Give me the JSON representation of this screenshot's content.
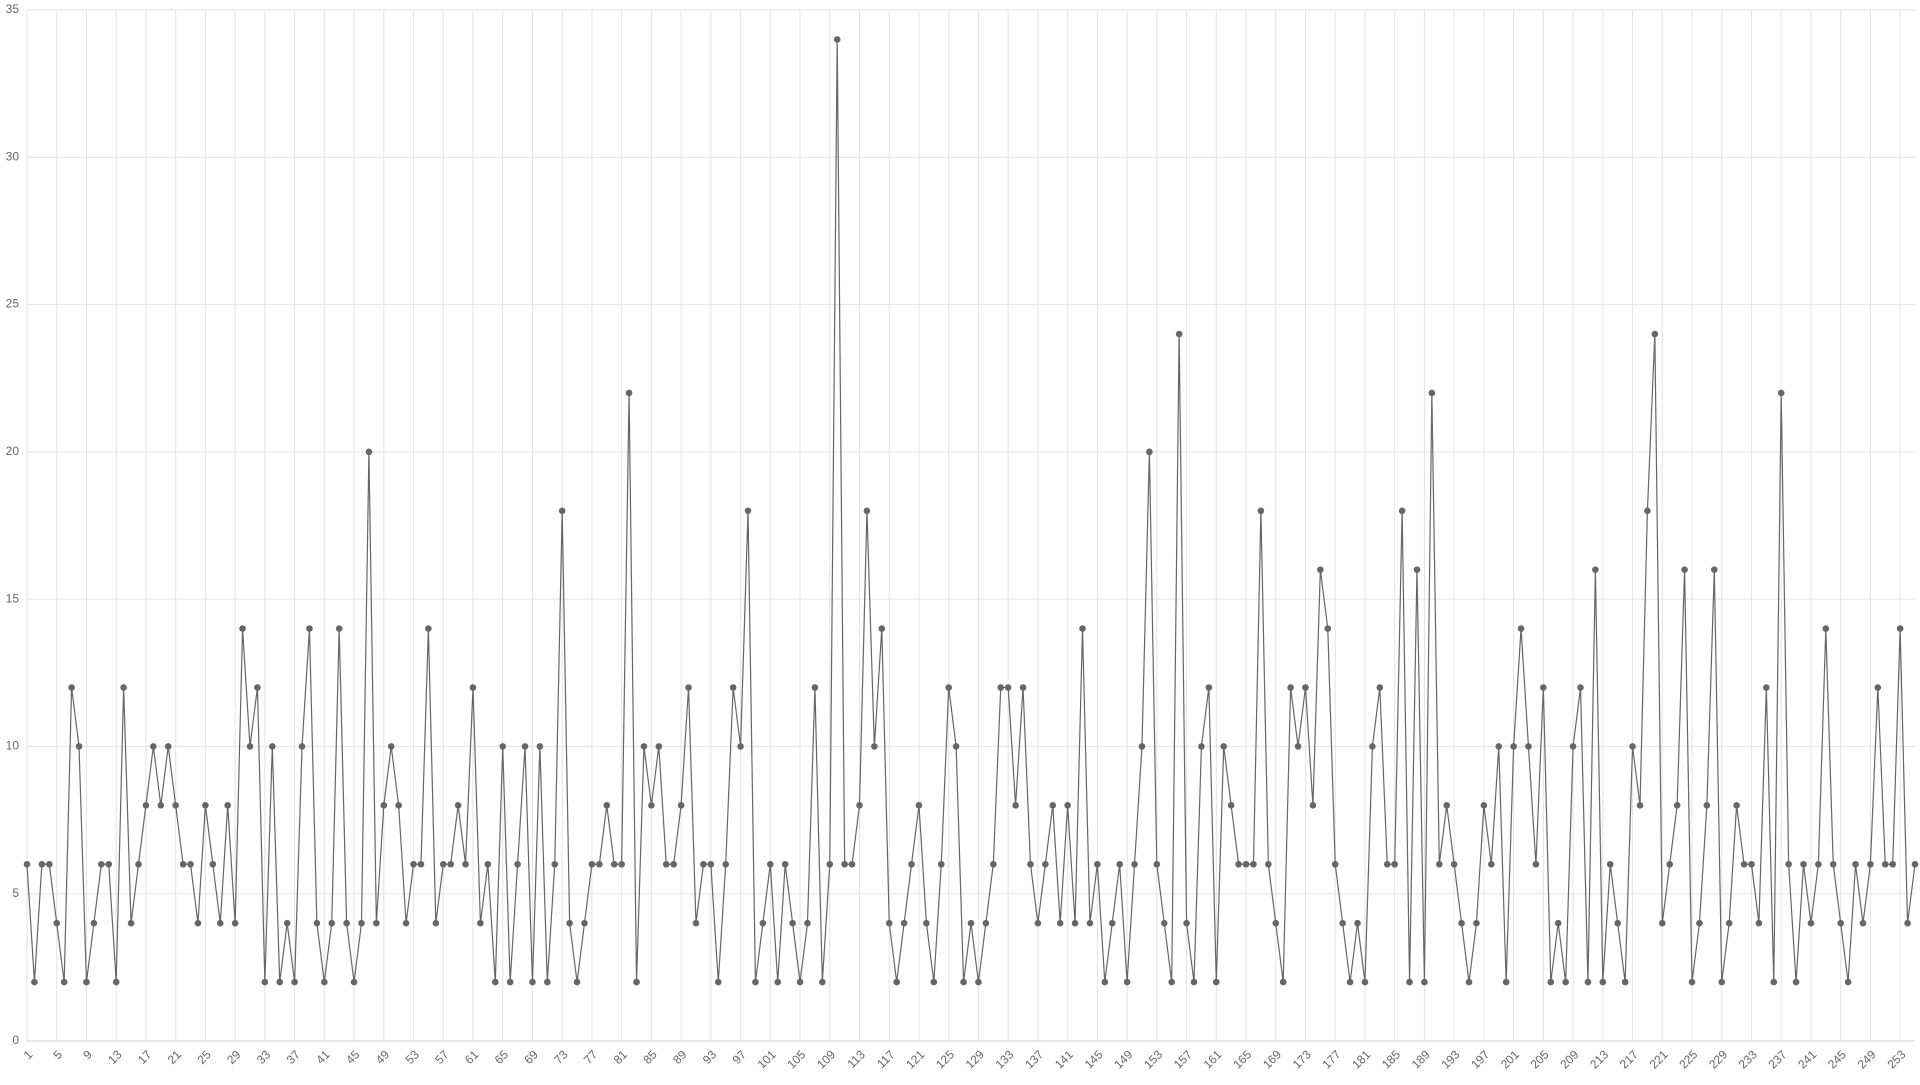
{
  "chart_data": {
    "type": "line",
    "categories": [
      1,
      null,
      null,
      null,
      5,
      null,
      null,
      null,
      9,
      null,
      null,
      null,
      13,
      null,
      null,
      null,
      17,
      null,
      null,
      null,
      21,
      null,
      null,
      null,
      25,
      null,
      null,
      null,
      29,
      null,
      null,
      null,
      33,
      null,
      null,
      null,
      37,
      null,
      null,
      null,
      41,
      null,
      null,
      null,
      45,
      null,
      null,
      null,
      49,
      null,
      null,
      null,
      53,
      null,
      null,
      null,
      57,
      null,
      null,
      null,
      61,
      null,
      null,
      null,
      65,
      null,
      null,
      null,
      69,
      null,
      null,
      null,
      73,
      null,
      null,
      null,
      77,
      null,
      null,
      null,
      81,
      null,
      null,
      null,
      85,
      null,
      null,
      null,
      89,
      null,
      null,
      null,
      93,
      null,
      null,
      null,
      97,
      null,
      null,
      null,
      101,
      null,
      null,
      null,
      105,
      null,
      null,
      null,
      109,
      null,
      null,
      null,
      113,
      null,
      null,
      null,
      117,
      null,
      null,
      null,
      121,
      null,
      null,
      null,
      125,
      null,
      null,
      null,
      129,
      null,
      null,
      null,
      133,
      null,
      null,
      null,
      137,
      null,
      null,
      null,
      141,
      null,
      null,
      null,
      145,
      null,
      null,
      null,
      149,
      null,
      null,
      null,
      153,
      null,
      null,
      null,
      157,
      null,
      null,
      null,
      161,
      null,
      null,
      null,
      165,
      null,
      null,
      null,
      169,
      null,
      null,
      null,
      173,
      null,
      null,
      null,
      177,
      null,
      null,
      null,
      181,
      null,
      null,
      null,
      185,
      null,
      null,
      null,
      189,
      null,
      null,
      null,
      193,
      null,
      null,
      null,
      197,
      null,
      null,
      null,
      201,
      null,
      null,
      null,
      205,
      null,
      null,
      null,
      209,
      null,
      null,
      null,
      213,
      null,
      null,
      null,
      217,
      null,
      null,
      null,
      221,
      null,
      null,
      null,
      225,
      null,
      null,
      null,
      229,
      null,
      null,
      null,
      233,
      null,
      null,
      null,
      237,
      null,
      null,
      null,
      241,
      null,
      null,
      null,
      245,
      null,
      null,
      null,
      249,
      null,
      null,
      null,
      253,
      null,
      null
    ],
    "values": [
      6,
      2,
      6,
      6,
      4,
      2,
      12,
      10,
      2,
      4,
      6,
      6,
      2,
      12,
      4,
      6,
      8,
      10,
      8,
      10,
      8,
      6,
      6,
      4,
      8,
      6,
      4,
      8,
      4,
      14,
      10,
      12,
      2,
      10,
      2,
      4,
      2,
      10,
      14,
      4,
      2,
      4,
      14,
      4,
      2,
      4,
      20,
      4,
      8,
      10,
      8,
      4,
      6,
      6,
      14,
      4,
      6,
      6,
      8,
      6,
      12,
      4,
      6,
      2,
      10,
      2,
      6,
      10,
      2,
      10,
      2,
      6,
      18,
      4,
      2,
      4,
      6,
      6,
      8,
      6,
      6,
      22,
      2,
      10,
      8,
      10,
      6,
      6,
      8,
      12,
      4,
      6,
      6,
      2,
      6,
      12,
      10,
      18,
      2,
      4,
      6,
      2,
      6,
      4,
      2,
      4,
      12,
      2,
      6,
      34,
      6,
      6,
      8,
      18,
      10,
      14,
      4,
      2,
      4,
      6,
      8,
      4,
      2,
      6,
      12,
      10,
      2,
      4,
      2,
      4,
      6,
      12,
      12,
      8,
      12,
      6,
      4,
      6,
      8,
      4,
      8,
      4,
      14,
      4,
      6,
      2,
      4,
      6,
      2,
      6,
      10,
      20,
      6,
      4,
      2,
      24,
      4,
      2,
      10,
      12,
      2,
      10,
      8,
      6,
      6,
      6,
      18,
      6,
      4,
      2,
      12,
      10,
      12,
      8,
      16,
      14,
      6,
      4,
      2,
      4,
      2,
      10,
      12,
      6,
      6,
      18,
      2,
      16,
      2,
      22,
      6,
      8,
      6,
      4,
      2,
      4,
      8,
      6,
      10,
      2,
      10,
      14,
      10,
      6,
      12,
      2,
      4,
      2,
      10,
      12,
      2,
      16,
      2,
      6,
      4,
      2,
      10,
      8,
      18,
      24,
      4,
      6,
      8,
      16,
      2,
      4,
      8,
      16,
      2,
      4,
      8,
      6,
      6,
      4,
      12,
      2,
      22,
      6,
      2,
      6,
      4,
      6,
      14,
      6,
      4,
      2,
      6,
      4,
      6,
      12,
      6,
      6,
      14,
      4,
      6
    ],
    "color": "#666666",
    "ylim": [
      0,
      35
    ],
    "yticks": [
      0,
      5,
      10,
      15,
      20,
      25,
      30,
      35
    ],
    "grid": true
  }
}
